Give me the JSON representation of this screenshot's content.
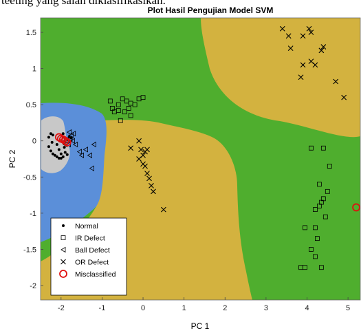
{
  "top_text": "teeting yang salah diklasifikasikan.",
  "chart_data": {
    "type": "scatter",
    "title": "Plot Hasil Pengujian Model SVM",
    "xlabel": "PC 1",
    "ylabel": "PC 2",
    "xlim": [
      -2.5,
      5.3
    ],
    "ylim": [
      -2.2,
      1.7
    ],
    "xticks": [
      -2,
      -1,
      0,
      1,
      2,
      3,
      4,
      5
    ],
    "yticks": [
      1.5,
      1,
      0.5,
      0,
      -0.5,
      -1,
      -1.5,
      -2
    ],
    "grid": false,
    "legend_position": "bottom-left",
    "region_colors": {
      "normal": "#c8c8c8",
      "ball": "#5b8fd9",
      "or": "#d3b23f",
      "ir": "#4fae2e"
    },
    "legend": [
      {
        "label": "Normal",
        "marker": "dot"
      },
      {
        "label": "IR Defect",
        "marker": "square"
      },
      {
        "label": "Ball Defect",
        "marker": "triangle"
      },
      {
        "label": "OR Defect",
        "marker": "x"
      },
      {
        "label": "Misclassified",
        "marker": "circle-red"
      }
    ],
    "series": [
      {
        "name": "Normal",
        "marker": "dot",
        "points": [
          [
            -2.25,
            0.1
          ],
          [
            -2.2,
            0.08
          ],
          [
            -2.3,
            0.05
          ],
          [
            -2.22,
            -0.02
          ],
          [
            -2.3,
            -0.08
          ],
          [
            -2.25,
            -0.14
          ],
          [
            -2.2,
            -0.18
          ],
          [
            -2.15,
            -0.2
          ],
          [
            -2.1,
            -0.22
          ],
          [
            -2.05,
            -0.24
          ],
          [
            -2.0,
            -0.24
          ],
          [
            -1.95,
            -0.22
          ],
          [
            -1.9,
            -0.16
          ],
          [
            -2.05,
            -0.12
          ],
          [
            -2.1,
            -0.05
          ],
          [
            -1.95,
            0.05
          ],
          [
            -1.85,
            0.03
          ],
          [
            -1.8,
            0.06
          ],
          [
            -1.75,
            0.04
          ],
          [
            -1.95,
            0.1
          ],
          [
            -2.0,
            -0.18
          ],
          [
            -1.85,
            -0.19
          ],
          [
            -1.92,
            -0.09
          ]
        ]
      },
      {
        "name": "IR Defect",
        "marker": "square",
        "points": [
          [
            -0.8,
            0.55
          ],
          [
            -0.6,
            0.5
          ],
          [
            -0.5,
            0.58
          ],
          [
            -0.4,
            0.55
          ],
          [
            -0.3,
            0.52
          ],
          [
            -0.1,
            0.58
          ],
          [
            0.0,
            0.6
          ],
          [
            -0.2,
            0.5
          ],
          [
            -0.6,
            0.42
          ],
          [
            -0.75,
            0.45
          ],
          [
            -0.7,
            0.4
          ],
          [
            -0.45,
            0.4
          ],
          [
            -0.35,
            0.45
          ],
          [
            -0.55,
            0.28
          ],
          [
            -0.3,
            0.35
          ],
          [
            4.1,
            -0.1
          ],
          [
            4.4,
            -0.1
          ],
          [
            4.55,
            -0.35
          ],
          [
            4.3,
            -0.6
          ],
          [
            4.5,
            -0.7
          ],
          [
            4.35,
            -0.85
          ],
          [
            4.3,
            -0.9
          ],
          [
            4.2,
            -0.95
          ],
          [
            3.95,
            -1.2
          ],
          [
            4.2,
            -1.2
          ],
          [
            4.1,
            -1.5
          ],
          [
            4.2,
            -1.6
          ],
          [
            4.25,
            -1.35
          ],
          [
            3.85,
            -1.75
          ],
          [
            3.95,
            -1.75
          ],
          [
            4.35,
            -1.75
          ],
          [
            4.45,
            -1.05
          ],
          [
            4.4,
            -0.8
          ]
        ]
      },
      {
        "name": "Ball Defect",
        "marker": "triangle",
        "points": [
          [
            -1.8,
            0.12
          ],
          [
            -1.75,
            0.08
          ],
          [
            -1.7,
            0.1
          ],
          [
            -1.85,
            0.02
          ],
          [
            -1.78,
            0.03
          ],
          [
            -1.72,
            0.0
          ],
          [
            -1.82,
            -0.05
          ],
          [
            -1.9,
            -0.05
          ],
          [
            -1.65,
            -0.05
          ],
          [
            -1.55,
            -0.15
          ],
          [
            -1.5,
            -0.2
          ],
          [
            -1.3,
            -0.2
          ],
          [
            -1.2,
            -0.05
          ],
          [
            -1.4,
            -0.12
          ],
          [
            -1.25,
            -0.38
          ],
          [
            -1.95,
            0.02
          ]
        ]
      },
      {
        "name": "OR Defect",
        "marker": "x",
        "points": [
          [
            3.4,
            1.55
          ],
          [
            3.55,
            1.45
          ],
          [
            3.6,
            1.28
          ],
          [
            3.9,
            1.45
          ],
          [
            4.05,
            1.55
          ],
          [
            4.1,
            1.5
          ],
          [
            4.4,
            1.3
          ],
          [
            4.35,
            1.25
          ],
          [
            4.1,
            1.1
          ],
          [
            3.9,
            1.05
          ],
          [
            4.2,
            1.05
          ],
          [
            3.85,
            0.88
          ],
          [
            4.7,
            0.82
          ],
          [
            4.9,
            0.6
          ],
          [
            -0.1,
            0.0
          ],
          [
            -0.3,
            -0.1
          ],
          [
            -0.05,
            -0.12
          ],
          [
            0.0,
            -0.2
          ],
          [
            0.05,
            -0.15
          ],
          [
            0.1,
            -0.12
          ],
          [
            -0.1,
            -0.25
          ],
          [
            0.0,
            -0.32
          ],
          [
            0.05,
            -0.35
          ],
          [
            0.1,
            -0.45
          ],
          [
            0.15,
            -0.52
          ],
          [
            0.2,
            -0.62
          ],
          [
            0.25,
            -0.7
          ],
          [
            0.5,
            -0.95
          ]
        ]
      },
      {
        "name": "Misclassified",
        "marker": "circle-red",
        "points": [
          [
            -2.05,
            0.05
          ],
          [
            -2.0,
            0.03
          ],
          [
            -1.95,
            0.02
          ],
          [
            -1.9,
            0.0
          ],
          [
            -1.85,
            -0.02
          ],
          [
            5.2,
            -0.92
          ]
        ]
      }
    ]
  }
}
